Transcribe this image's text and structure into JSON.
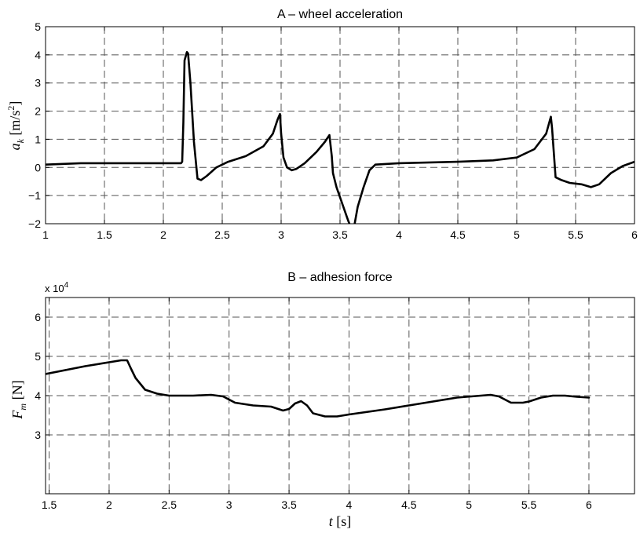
{
  "chart_data": [
    {
      "type": "line",
      "title": "A – wheel acceleration",
      "ylabel": {
        "main": "a",
        "sub": "k",
        "units": " [m/s",
        "sup": "2",
        "close": "]"
      },
      "xlim": [
        1,
        6
      ],
      "ylim": [
        -2,
        5
      ],
      "xticks": [
        1,
        1.5,
        2,
        2.5,
        3,
        3.5,
        4,
        4.5,
        5,
        5.5,
        6
      ],
      "yticks": [
        -2,
        -1,
        0,
        1,
        2,
        3,
        4,
        5
      ],
      "grid": true,
      "series": [
        {
          "x": [
            1,
            1.3,
            2.05,
            2.15,
            2.16,
            2.17,
            2.18,
            2.2,
            2.21,
            2.23,
            2.26,
            2.29,
            2.32,
            2.37,
            2.45,
            2.55,
            2.7,
            2.85,
            2.93,
            2.97,
            2.99,
            3.0,
            3.02,
            3.05,
            3.09,
            3.13,
            3.2,
            3.3,
            3.37,
            3.41,
            3.43,
            3.44,
            3.47,
            3.52,
            3.57,
            3.6,
            3.62,
            3.65,
            3.7,
            3.75,
            3.8,
            4.0,
            4.5,
            4.8,
            5.0,
            5.15,
            5.25,
            5.29,
            5.3,
            5.33,
            5.38,
            5.45,
            5.55,
            5.63,
            5.7,
            5.8,
            5.9,
            6.0
          ],
          "y": [
            0.1,
            0.15,
            0.15,
            0.15,
            0.2,
            1.6,
            3.8,
            4.1,
            4.05,
            3.0,
            0.9,
            -0.4,
            -0.45,
            -0.3,
            0.0,
            0.2,
            0.4,
            0.75,
            1.2,
            1.7,
            1.9,
            1.2,
            0.35,
            0.0,
            -0.1,
            -0.05,
            0.15,
            0.55,
            0.9,
            1.15,
            0.4,
            -0.2,
            -0.7,
            -1.3,
            -1.9,
            -2.2,
            -2.1,
            -1.4,
            -0.7,
            -0.1,
            0.1,
            0.15,
            0.2,
            0.25,
            0.35,
            0.65,
            1.2,
            1.8,
            1.4,
            -0.35,
            -0.45,
            -0.55,
            -0.6,
            -0.7,
            -0.6,
            -0.2,
            0.05,
            0.2
          ]
        }
      ]
    },
    {
      "type": "line",
      "title": "B – adhesion force",
      "scale_note": {
        "base": "x 10",
        "exp": "4"
      },
      "ylabel": {
        "main": "F",
        "sub": "m",
        "units": " [N]"
      },
      "xlabel": {
        "main": "t",
        "units": " [s]"
      },
      "xlim": [
        1.47,
        6.38
      ],
      "ylim": [
        1.5,
        6.5
      ],
      "xticks": [
        1.5,
        2,
        2.5,
        3,
        3.5,
        4,
        4.5,
        5,
        5.5,
        6
      ],
      "yticks": [
        3,
        4,
        5,
        6
      ],
      "grid": true,
      "series": [
        {
          "x": [
            1.47,
            1.8,
            2.1,
            2.15,
            2.18,
            2.22,
            2.3,
            2.4,
            2.5,
            2.7,
            2.85,
            2.95,
            3.05,
            3.2,
            3.35,
            3.45,
            3.5,
            3.55,
            3.6,
            3.65,
            3.7,
            3.8,
            3.9,
            4.0,
            4.3,
            4.6,
            4.9,
            5.1,
            5.18,
            5.25,
            5.3,
            5.35,
            5.45,
            5.5,
            5.6,
            5.7,
            5.8,
            5.9,
            6.0
          ],
          "y": [
            4.55,
            4.75,
            4.9,
            4.9,
            4.7,
            4.45,
            4.15,
            4.05,
            4.0,
            4.0,
            4.02,
            3.98,
            3.82,
            3.75,
            3.72,
            3.62,
            3.66,
            3.8,
            3.86,
            3.75,
            3.55,
            3.47,
            3.47,
            3.52,
            3.65,
            3.8,
            3.95,
            4.0,
            4.02,
            3.98,
            3.9,
            3.82,
            3.82,
            3.85,
            3.95,
            4.0,
            4.0,
            3.97,
            3.95
          ]
        }
      ]
    }
  ]
}
